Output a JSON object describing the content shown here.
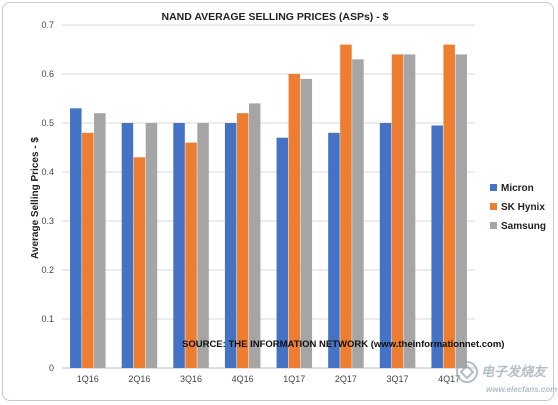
{
  "chart_data": {
    "type": "bar",
    "title": "NAND AVERAGE SELLING PRICES (ASPs)  - $",
    "ylabel": "Average Selling Prices - $",
    "xlabel": "",
    "ylim": [
      0,
      0.7
    ],
    "yticks": [
      "0",
      "0.1",
      "0.2",
      "0.3",
      "0.4",
      "0.5",
      "0.6",
      "0.7"
    ],
    "grid": true,
    "legend_position": "right",
    "categories": [
      "1Q16",
      "2Q16",
      "3Q16",
      "4Q16",
      "1Q17",
      "2Q17",
      "3Q17",
      "4Q17"
    ],
    "series": [
      {
        "name": "Micron",
        "color": "#4472c4",
        "values": [
          0.53,
          0.5,
          0.5,
          0.5,
          0.47,
          0.48,
          0.5,
          0.495
        ]
      },
      {
        "name": "SK Hynix",
        "color": "#ed7d31",
        "values": [
          0.48,
          0.43,
          0.46,
          0.52,
          0.6,
          0.66,
          0.64,
          0.66
        ]
      },
      {
        "name": "Samsung",
        "color": "#a5a5a5",
        "values": [
          0.52,
          0.5,
          0.5,
          0.54,
          0.59,
          0.63,
          0.64,
          0.64
        ]
      }
    ],
    "annotation": "SOURCE: THE INFORMATION  NETWORK (www.theinformationnet.com)"
  },
  "watermark": {
    "text": "电子发烧友",
    "subtext": "www.elecfans.com"
  }
}
